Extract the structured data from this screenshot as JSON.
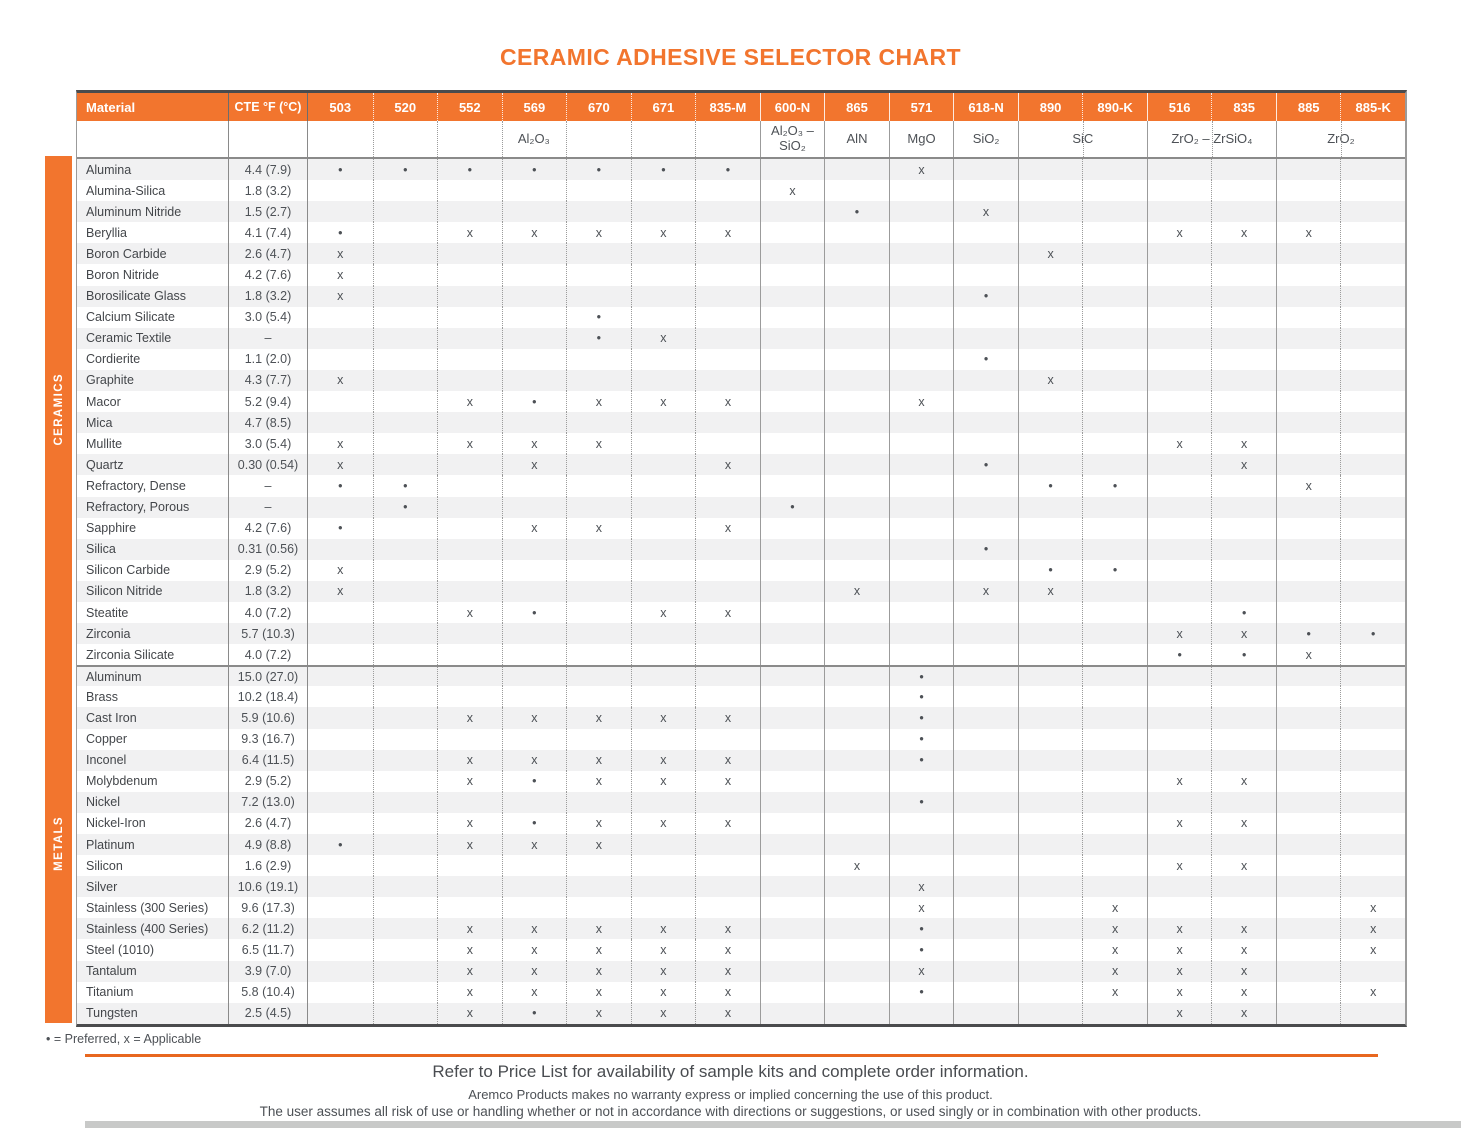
{
  "title": "CERAMIC ADHESIVE SELECTOR CHART",
  "legend": "• = Preferred, x = Applicable",
  "footer": {
    "line1": "Refer to Price List for availability of sample kits and complete order information.",
    "line2": "Aremco Products makes no warranty express or implied concerning the use of this product.",
    "line3": "The user assumes all risk of use or handling whether or not in accordance with directions or suggestions, or used singly or in combination with other products."
  },
  "colors": {
    "accent_orange": "#f2752e",
    "divider_orange": "#e8671f",
    "row_stripe": "#f1f1f2",
    "border_gray": "#9b9b9b",
    "heavy_border": "#4a4b4d",
    "text": "#4d5156"
  },
  "table": {
    "material_header": "Material",
    "cte_header": "CTE °F (°C)",
    "columns": [
      "503",
      "520",
      "552",
      "569",
      "670",
      "671",
      "835-M",
      "600-N",
      "865",
      "571",
      "618-N",
      "890",
      "890-K",
      "516",
      "835",
      "885",
      "885-K"
    ],
    "group_start_indices": [
      0,
      7,
      8,
      9,
      10,
      11,
      13,
      15
    ],
    "groups": [
      {
        "label": "Al₂O₃",
        "span": 7
      },
      {
        "label": "Al₂O₃ – SiO₂",
        "span": 1
      },
      {
        "label": "AlN",
        "span": 1
      },
      {
        "label": "MgO",
        "span": 1
      },
      {
        "label": "SiO₂",
        "span": 1
      },
      {
        "label": "SiC",
        "span": 2
      },
      {
        "label": "ZrO₂ – ZrSiO₄",
        "span": 2
      },
      {
        "label": "ZrO₂",
        "span": 2
      }
    ],
    "sections": [
      {
        "label": "CERAMICS",
        "rows": [
          {
            "name": "Alumina",
            "cte": "4.4 (7.9)",
            "marks": [
              "•",
              "•",
              "•",
              "•",
              "•",
              "•",
              "•",
              "",
              "",
              "x",
              "",
              "",
              "",
              "",
              "",
              "",
              ""
            ]
          },
          {
            "name": "Alumina-Silica",
            "cte": "1.8 (3.2)",
            "marks": [
              "",
              "",
              "",
              "",
              "",
              "",
              "",
              "x",
              "",
              "",
              "",
              "",
              "",
              "",
              "",
              "",
              ""
            ]
          },
          {
            "name": "Aluminum Nitride",
            "cte": "1.5 (2.7)",
            "marks": [
              "",
              "",
              "",
              "",
              "",
              "",
              "",
              "",
              "•",
              "",
              "x",
              "",
              "",
              "",
              "",
              "",
              ""
            ]
          },
          {
            "name": "Beryllia",
            "cte": "4.1 (7.4)",
            "marks": [
              "•",
              "",
              "x",
              "x",
              "x",
              "x",
              "x",
              "",
              "",
              "",
              "",
              "",
              "",
              "x",
              "x",
              "x",
              ""
            ]
          },
          {
            "name": "Boron Carbide",
            "cte": "2.6 (4.7)",
            "marks": [
              "x",
              "",
              "",
              "",
              "",
              "",
              "",
              "",
              "",
              "",
              "",
              "x",
              "",
              "",
              "",
              "",
              ""
            ]
          },
          {
            "name": "Boron Nitride",
            "cte": "4.2 (7.6)",
            "marks": [
              "x",
              "",
              "",
              "",
              "",
              "",
              "",
              "",
              "",
              "",
              "",
              "",
              "",
              "",
              "",
              "",
              ""
            ]
          },
          {
            "name": "Borosilicate Glass",
            "cte": "1.8 (3.2)",
            "marks": [
              "x",
              "",
              "",
              "",
              "",
              "",
              "",
              "",
              "",
              "",
              "•",
              "",
              "",
              "",
              "",
              "",
              ""
            ]
          },
          {
            "name": "Calcium Silicate",
            "cte": "3.0 (5.4)",
            "marks": [
              "",
              "",
              "",
              "",
              "•",
              "",
              "",
              "",
              "",
              "",
              "",
              "",
              "",
              "",
              "",
              "",
              ""
            ]
          },
          {
            "name": "Ceramic Textile",
            "cte": "–",
            "marks": [
              "",
              "",
              "",
              "",
              "•",
              "x",
              "",
              "",
              "",
              "",
              "",
              "",
              "",
              "",
              "",
              "",
              ""
            ]
          },
          {
            "name": "Cordierite",
            "cte": "1.1 (2.0)",
            "marks": [
              "",
              "",
              "",
              "",
              "",
              "",
              "",
              "",
              "",
              "",
              "•",
              "",
              "",
              "",
              "",
              "",
              ""
            ]
          },
          {
            "name": "Graphite",
            "cte": "4.3 (7.7)",
            "marks": [
              "x",
              "",
              "",
              "",
              "",
              "",
              "",
              "",
              "",
              "",
              "",
              "x",
              "",
              "",
              "",
              "",
              ""
            ]
          },
          {
            "name": "Macor",
            "cte": "5.2 (9.4)",
            "marks": [
              "",
              "",
              "x",
              "•",
              "x",
              "x",
              "x",
              "",
              "",
              "x",
              "",
              "",
              "",
              "",
              "",
              "",
              ""
            ]
          },
          {
            "name": "Mica",
            "cte": "4.7 (8.5)",
            "marks": [
              "",
              "",
              "",
              "",
              "",
              "",
              "",
              "",
              "",
              "",
              "",
              "",
              "",
              "",
              "",
              "",
              ""
            ]
          },
          {
            "name": "Mullite",
            "cte": "3.0 (5.4)",
            "marks": [
              "x",
              "",
              "x",
              "x",
              "x",
              "",
              "",
              "",
              "",
              "",
              "",
              "",
              "",
              "x",
              "x",
              "",
              ""
            ]
          },
          {
            "name": "Quartz",
            "cte": "0.30 (0.54)",
            "marks": [
              "x",
              "",
              "",
              "x",
              "",
              "",
              "x",
              "",
              "",
              "",
              "•",
              "",
              "",
              "",
              "x",
              "",
              ""
            ]
          },
          {
            "name": "Refractory, Dense",
            "cte": "–",
            "marks": [
              "•",
              "•",
              "",
              "",
              "",
              "",
              "",
              "",
              "",
              "",
              "",
              "•",
              "•",
              "",
              "",
              "x",
              ""
            ]
          },
          {
            "name": "Refractory, Porous",
            "cte": "–",
            "marks": [
              "",
              "•",
              "",
              "",
              "",
              "",
              "",
              "•",
              "",
              "",
              "",
              "",
              "",
              "",
              "",
              "",
              ""
            ]
          },
          {
            "name": "Sapphire",
            "cte": "4.2 (7.6)",
            "marks": [
              "•",
              "",
              "",
              "x",
              "x",
              "",
              "x",
              "",
              "",
              "",
              "",
              "",
              "",
              "",
              "",
              "",
              ""
            ]
          },
          {
            "name": "Silica",
            "cte": "0.31 (0.56)",
            "marks": [
              "",
              "",
              "",
              "",
              "",
              "",
              "",
              "",
              "",
              "",
              "•",
              "",
              "",
              "",
              "",
              "",
              ""
            ]
          },
          {
            "name": "Silicon Carbide",
            "cte": "2.9 (5.2)",
            "marks": [
              "x",
              "",
              "",
              "",
              "",
              "",
              "",
              "",
              "",
              "",
              "",
              "•",
              "•",
              "",
              "",
              "",
              ""
            ]
          },
          {
            "name": "Silicon Nitride",
            "cte": "1.8 (3.2)",
            "marks": [
              "x",
              "",
              "",
              "",
              "",
              "",
              "",
              "",
              "x",
              "",
              "x",
              "x",
              "",
              "",
              "",
              "",
              ""
            ]
          },
          {
            "name": "Steatite",
            "cte": "4.0 (7.2)",
            "marks": [
              "",
              "",
              "x",
              "•",
              "",
              "x",
              "x",
              "",
              "",
              "",
              "",
              "",
              "",
              "",
              "•",
              "",
              ""
            ]
          },
          {
            "name": "Zirconia",
            "cte": "5.7 (10.3)",
            "marks": [
              "",
              "",
              "",
              "",
              "",
              "",
              "",
              "",
              "",
              "",
              "",
              "",
              "",
              "x",
              "x",
              "•",
              "•"
            ]
          },
          {
            "name": "Zirconia Silicate",
            "cte": "4.0 (7.2)",
            "marks": [
              "",
              "",
              "",
              "",
              "",
              "",
              "",
              "",
              "",
              "",
              "",
              "",
              "",
              "•",
              "•",
              "x",
              ""
            ]
          }
        ]
      },
      {
        "label": "METALS",
        "rows": [
          {
            "name": "Aluminum",
            "cte": "15.0 (27.0)",
            "marks": [
              "",
              "",
              "",
              "",
              "",
              "",
              "",
              "",
              "",
              "•",
              "",
              "",
              "",
              "",
              "",
              "",
              ""
            ]
          },
          {
            "name": "Brass",
            "cte": "10.2 (18.4)",
            "marks": [
              "",
              "",
              "",
              "",
              "",
              "",
              "",
              "",
              "",
              "•",
              "",
              "",
              "",
              "",
              "",
              "",
              ""
            ]
          },
          {
            "name": "Cast Iron",
            "cte": "5.9 (10.6)",
            "marks": [
              "",
              "",
              "x",
              "x",
              "x",
              "x",
              "x",
              "",
              "",
              "•",
              "",
              "",
              "",
              "",
              "",
              "",
              ""
            ]
          },
          {
            "name": "Copper",
            "cte": "9.3 (16.7)",
            "marks": [
              "",
              "",
              "",
              "",
              "",
              "",
              "",
              "",
              "",
              "•",
              "",
              "",
              "",
              "",
              "",
              "",
              ""
            ]
          },
          {
            "name": "Inconel",
            "cte": "6.4 (11.5)",
            "marks": [
              "",
              "",
              "x",
              "x",
              "x",
              "x",
              "x",
              "",
              "",
              "•",
              "",
              "",
              "",
              "",
              "",
              "",
              ""
            ]
          },
          {
            "name": "Molybdenum",
            "cte": "2.9 (5.2)",
            "marks": [
              "",
              "",
              "x",
              "•",
              "x",
              "x",
              "x",
              "",
              "",
              "",
              "",
              "",
              "",
              "x",
              "x",
              "",
              ""
            ]
          },
          {
            "name": "Nickel",
            "cte": "7.2 (13.0)",
            "marks": [
              "",
              "",
              "",
              "",
              "",
              "",
              "",
              "",
              "",
              "•",
              "",
              "",
              "",
              "",
              "",
              "",
              ""
            ]
          },
          {
            "name": "Nickel-Iron",
            "cte": "2.6 (4.7)",
            "marks": [
              "",
              "",
              "x",
              "•",
              "x",
              "x",
              "x",
              "",
              "",
              "",
              "",
              "",
              "",
              "x",
              "x",
              "",
              ""
            ]
          },
          {
            "name": "Platinum",
            "cte": "4.9 (8.8)",
            "marks": [
              "•",
              "",
              "x",
              "x",
              "x",
              "",
              "",
              "",
              "",
              "",
              "",
              "",
              "",
              "",
              "",
              "",
              ""
            ]
          },
          {
            "name": "Silicon",
            "cte": "1.6 (2.9)",
            "marks": [
              "",
              "",
              "",
              "",
              "",
              "",
              "",
              "",
              "x",
              "",
              "",
              "",
              "",
              "x",
              "x",
              "",
              ""
            ]
          },
          {
            "name": "Silver",
            "cte": "10.6 (19.1)",
            "marks": [
              "",
              "",
              "",
              "",
              "",
              "",
              "",
              "",
              "",
              "x",
              "",
              "",
              "",
              "",
              "",
              "",
              ""
            ]
          },
          {
            "name": "Stainless (300 Series)",
            "cte": "9.6 (17.3)",
            "marks": [
              "",
              "",
              "",
              "",
              "",
              "",
              "",
              "",
              "",
              "x",
              "",
              "",
              "x",
              "",
              "",
              "",
              "x"
            ]
          },
          {
            "name": "Stainless (400 Series)",
            "cte": "6.2 (11.2)",
            "marks": [
              "",
              "",
              "x",
              "x",
              "x",
              "x",
              "x",
              "",
              "",
              "•",
              "",
              "",
              "x",
              "x",
              "x",
              "",
              "x"
            ]
          },
          {
            "name": "Steel (1010)",
            "cte": "6.5 (11.7)",
            "marks": [
              "",
              "",
              "x",
              "x",
              "x",
              "x",
              "x",
              "",
              "",
              "•",
              "",
              "",
              "x",
              "x",
              "x",
              "",
              "x"
            ]
          },
          {
            "name": "Tantalum",
            "cte": "3.9 (7.0)",
            "marks": [
              "",
              "",
              "x",
              "x",
              "x",
              "x",
              "x",
              "",
              "",
              "x",
              "",
              "",
              "x",
              "x",
              "x",
              "",
              ""
            ]
          },
          {
            "name": "Titanium",
            "cte": "5.8 (10.4)",
            "marks": [
              "",
              "",
              "x",
              "x",
              "x",
              "x",
              "x",
              "",
              "",
              "•",
              "",
              "",
              "x",
              "x",
              "x",
              "",
              "x"
            ]
          },
          {
            "name": "Tungsten",
            "cte": "2.5 (4.5)",
            "marks": [
              "",
              "",
              "x",
              "•",
              "x",
              "x",
              "x",
              "",
              "",
              "",
              "",
              "",
              "",
              "x",
              "x",
              "",
              ""
            ]
          }
        ]
      }
    ]
  }
}
